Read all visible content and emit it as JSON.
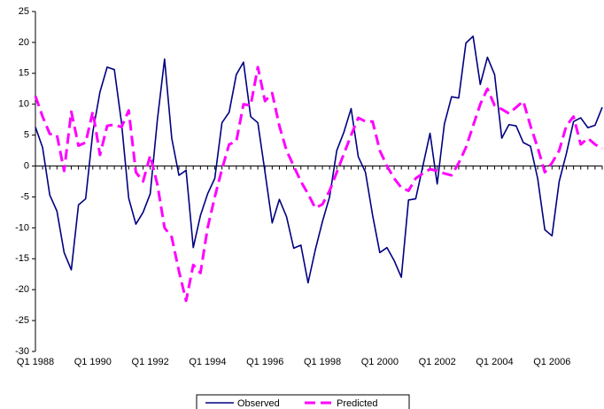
{
  "chart_data": {
    "type": "line",
    "categories": [
      "Q1 1988",
      null,
      null,
      null,
      null,
      null,
      null,
      null,
      "Q1 1990",
      null,
      null,
      null,
      null,
      null,
      null,
      null,
      "Q1 1992",
      null,
      null,
      null,
      null,
      null,
      null,
      null,
      "Q1 1994",
      null,
      null,
      null,
      null,
      null,
      null,
      null,
      "Q1 1996",
      null,
      null,
      null,
      null,
      null,
      null,
      null,
      "Q1 1998",
      null,
      null,
      null,
      null,
      null,
      null,
      null,
      "Q1 2000",
      null,
      null,
      null,
      null,
      null,
      null,
      null,
      "Q1 2002",
      null,
      null,
      null,
      null,
      null,
      null,
      null,
      "Q1 2004",
      null,
      null,
      null,
      null,
      null,
      null,
      null,
      "Q1 2006",
      null,
      null,
      null,
      null,
      null,
      null,
      null
    ],
    "series": [
      {
        "name": "Observed",
        "color": "#000080",
        "dash": false,
        "values": [
          6.3,
          3,
          -4.7,
          -7.3,
          -14,
          -16.8,
          -6.3,
          -5.3,
          5.5,
          12,
          16,
          15.6,
          7,
          -5.2,
          -9.4,
          -7.5,
          -4.5,
          7.5,
          17.3,
          4.5,
          -1.5,
          -0.7,
          -13.2,
          -8,
          -4.5,
          -2,
          7,
          8.7,
          14.8,
          16.8,
          8,
          7,
          -1,
          -9.2,
          -5.4,
          -8.2,
          -13.3,
          -12.8,
          -18.9,
          -13.6,
          -9,
          -5,
          2.5,
          5.5,
          9.3,
          1.5,
          -1,
          -8,
          -14,
          -13.2,
          -15.3,
          -18,
          -5.5,
          -5.3,
          0,
          5.3,
          -2.9,
          6.8,
          11.2,
          11,
          19.9,
          21,
          13.2,
          17.6,
          14.8,
          4.5,
          6.7,
          6.5,
          3.8,
          3.2,
          -2,
          -10.3,
          -11.3,
          -2.5,
          2,
          7.2,
          7.8,
          6.2,
          6.6,
          9.5
        ]
      },
      {
        "name": "Predicted",
        "color": "#ff00ff",
        "dash": true,
        "values": [
          11.3,
          8,
          5.2,
          5,
          -0.8,
          8.8,
          3.3,
          3.8,
          8.8,
          1.8,
          6.5,
          6.7,
          6.3,
          9,
          -1,
          -2.5,
          1.7,
          -3,
          -10,
          -11.5,
          -17,
          -21.8,
          -16,
          -17.3,
          -10,
          -5,
          -0.5,
          3.5,
          4,
          10,
          9.8,
          16,
          10.5,
          11.8,
          6.5,
          2.5,
          0,
          -2.5,
          -4.5,
          -6.8,
          -6.2,
          -4,
          -1,
          2,
          5,
          7.8,
          7.2,
          7.2,
          2.5,
          0,
          -2,
          -3.5,
          -4,
          -2,
          -1.2,
          -0.5,
          -0.8,
          -1.2,
          -1.5,
          0.5,
          3,
          6.5,
          10,
          12.5,
          9.8,
          9.2,
          8.5,
          9.5,
          10.5,
          6.5,
          3,
          -1,
          0.5,
          2.5,
          6.5,
          8,
          3.5,
          4.5,
          3.5,
          2.8
        ]
      }
    ],
    "ylim": [
      -30,
      25
    ],
    "yticks": [
      -30,
      -25,
      -20,
      -15,
      -10,
      -5,
      0,
      5,
      10,
      15,
      20,
      25
    ],
    "grid": false,
    "legend": "bottom"
  }
}
